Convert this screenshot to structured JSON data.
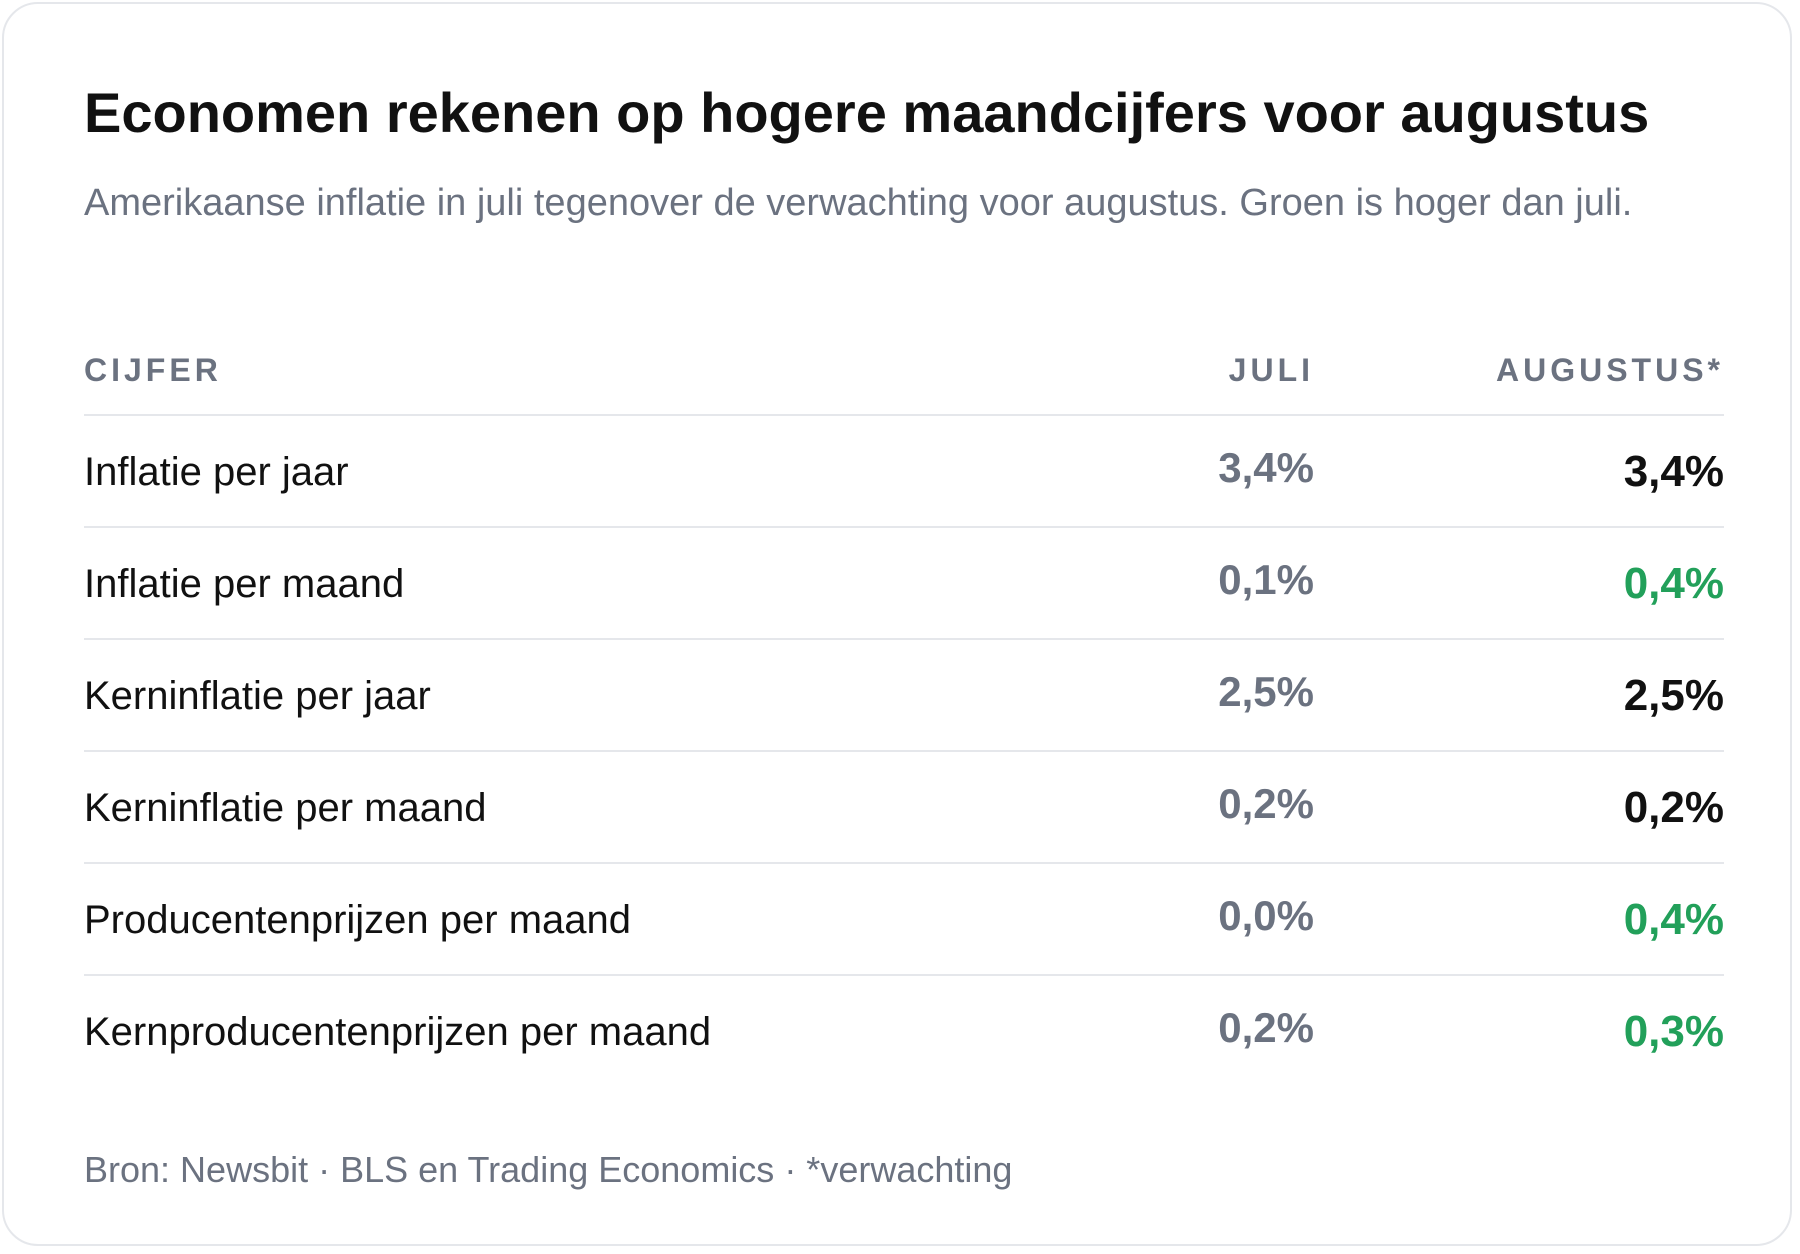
{
  "title": "Economen rekenen op hogere maandcijfers voor augustus",
  "subtitle": "Amerikaanse inflatie in juli tegenover de verwachting voor augustus. Groen is hoger dan juli.",
  "source": "Bron: Newsbit · BLS en Trading Economics · *verwachting",
  "colors": {
    "higher": "#22a05a",
    "same": "#111111",
    "juli": "#6b7280"
  },
  "chart_data": {
    "type": "table",
    "columns": [
      "CIJFER",
      "JULI",
      "AUGUSTUS*"
    ],
    "rows": [
      {
        "label": "Inflatie per jaar",
        "juli": "3,4%",
        "augustus": "3,4%",
        "higher": false
      },
      {
        "label": "Inflatie per maand",
        "juli": "0,1%",
        "augustus": "0,4%",
        "higher": true
      },
      {
        "label": "Kerninflatie per jaar",
        "juli": "2,5%",
        "augustus": "2,5%",
        "higher": false
      },
      {
        "label": "Kerninflatie per maand",
        "juli": "0,2%",
        "augustus": "0,2%",
        "higher": false
      },
      {
        "label": "Producentenprijzen per maand",
        "juli": "0,0%",
        "augustus": "0,4%",
        "higher": true
      },
      {
        "label": "Kernproducentenprijzen per maand",
        "juli": "0,2%",
        "augustus": "0,3%",
        "higher": true
      }
    ]
  }
}
